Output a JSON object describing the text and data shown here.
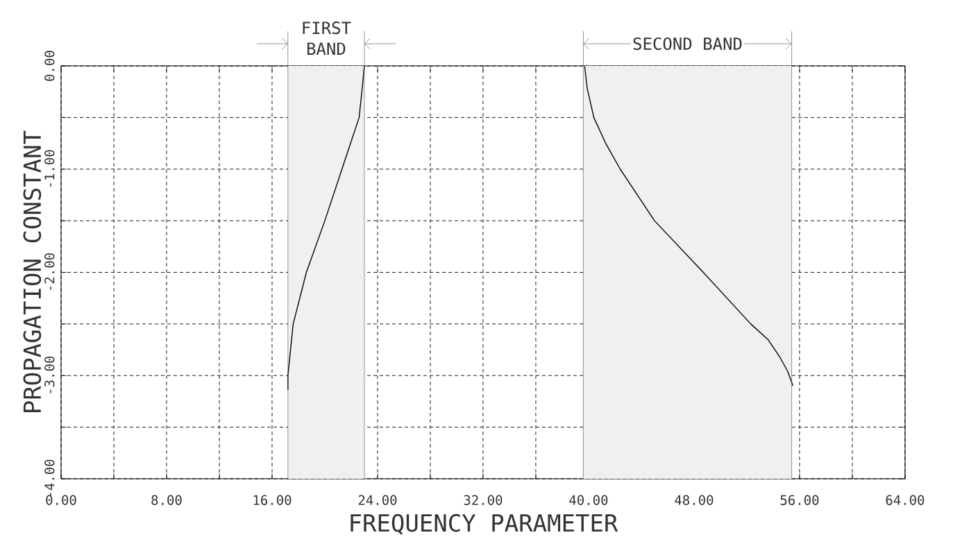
{
  "chart_data": {
    "type": "line",
    "xlabel": "FREQUENCY PARAMETER",
    "ylabel": "PROPAGATION CONSTANT",
    "xlim": [
      0,
      64
    ],
    "ylim": [
      -4,
      0
    ],
    "xticks": [
      {
        "value": 0,
        "label": "0.00"
      },
      {
        "value": 4,
        "label": null
      },
      {
        "value": 8,
        "label": "8.00"
      },
      {
        "value": 12,
        "label": null
      },
      {
        "value": 16,
        "label": "16.00"
      },
      {
        "value": 20,
        "label": null
      },
      {
        "value": 24,
        "label": "24.00"
      },
      {
        "value": 28,
        "label": null
      },
      {
        "value": 32,
        "label": "32.00"
      },
      {
        "value": 36,
        "label": null
      },
      {
        "value": 40,
        "label": "40.00"
      },
      {
        "value": 44,
        "label": null
      },
      {
        "value": 48,
        "label": "48.00"
      },
      {
        "value": 52,
        "label": null
      },
      {
        "value": 56,
        "label": "56.00"
      },
      {
        "value": 60,
        "label": null
      },
      {
        "value": 64,
        "label": "64.00"
      }
    ],
    "yticks": [
      {
        "value": -4,
        "label": "-4.00"
      },
      {
        "value": -3.5,
        "label": null
      },
      {
        "value": -3,
        "label": "-3.00"
      },
      {
        "value": -2.5,
        "label": null
      },
      {
        "value": -2,
        "label": "-2.00"
      },
      {
        "value": -1.5,
        "label": null
      },
      {
        "value": -1,
        "label": "-1.00"
      },
      {
        "value": -0.5,
        "label": null
      },
      {
        "value": 0,
        "label": "0.00"
      }
    ],
    "grid": true,
    "line_style": "solid",
    "marker": "none",
    "series": [
      {
        "color": "#000000",
        "x": [
          23.0,
          22.8,
          22.6,
          21.3,
          20.0,
          18.6,
          17.6,
          17.2,
          17.2
        ],
        "values": [
          0,
          -0.26,
          -0.5,
          -1,
          -1.5,
          -2,
          -2.5,
          -3,
          -3.14
        ]
      },
      {
        "color": "#000000",
        "x": [
          39.7,
          39.9,
          40.4,
          41.3,
          42.4,
          45.0,
          48.7,
          52.3,
          53.6,
          54.5,
          55.1,
          55.5
        ],
        "values": [
          0,
          -0.22,
          -0.5,
          -0.75,
          -1,
          -1.5,
          -2,
          -2.5,
          -2.65,
          -2.82,
          -2.96,
          -3.1
        ]
      }
    ],
    "bands": [
      {
        "axis": "x",
        "from": 17.2,
        "to": 23.0,
        "label": "FIRST BAND"
      },
      {
        "axis": "x",
        "from": 39.6,
        "to": 55.4,
        "label": "SECOND BAND"
      }
    ]
  }
}
